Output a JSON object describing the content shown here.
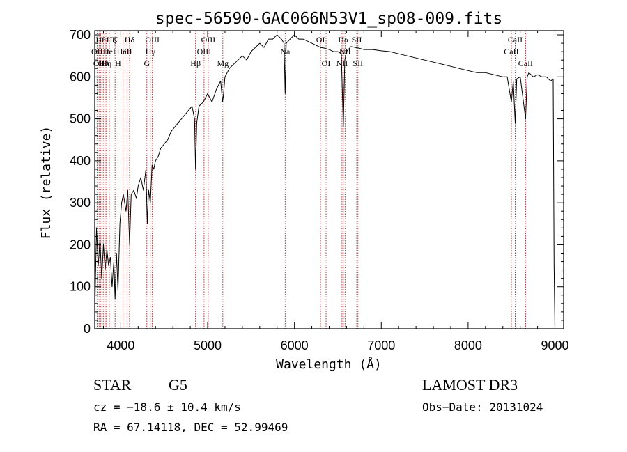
{
  "chart_data": {
    "type": "line",
    "title": "spec-56590-GAC066N53V1_sp08-009.fits",
    "xlabel": "Wavelength (Å)",
    "ylabel": "Flux (relative)",
    "xlim": [
      3700,
      9100
    ],
    "ylim": [
      0,
      710
    ],
    "x_ticks": [
      4000,
      5000,
      6000,
      7000,
      8000,
      9000
    ],
    "y_ticks": [
      0,
      100,
      200,
      300,
      400,
      500,
      600,
      700
    ],
    "series": [
      {
        "name": "spectrum",
        "x": [
          3700,
          3720,
          3740,
          3760,
          3780,
          3800,
          3820,
          3840,
          3860,
          3880,
          3900,
          3920,
          3934,
          3950,
          3968,
          3990,
          4010,
          4030,
          4060,
          4080,
          4101,
          4120,
          4150,
          4180,
          4200,
          4230,
          4260,
          4290,
          4305,
          4320,
          4340,
          4360,
          4380,
          4400,
          4430,
          4460,
          4500,
          4540,
          4580,
          4620,
          4660,
          4700,
          4740,
          4780,
          4820,
          4850,
          4861,
          4875,
          4900,
          4950,
          5000,
          5050,
          5100,
          5150,
          5172,
          5184,
          5200,
          5250,
          5300,
          5350,
          5400,
          5450,
          5500,
          5550,
          5600,
          5650,
          5700,
          5750,
          5800,
          5850,
          5880,
          5893,
          5905,
          5950,
          6000,
          6050,
          6100,
          6150,
          6200,
          6250,
          6300,
          6350,
          6400,
          6450,
          6500,
          6540,
          6563,
          6580,
          6600,
          6650,
          6700,
          6750,
          6800,
          6900,
          7000,
          7100,
          7200,
          7300,
          7400,
          7500,
          7600,
          7700,
          7800,
          7900,
          8000,
          8100,
          8200,
          8300,
          8400,
          8450,
          8498,
          8520,
          8542,
          8560,
          8600,
          8662,
          8680,
          8700,
          8750,
          8800,
          8850,
          8900,
          8950,
          8980,
          8990,
          9000
        ],
        "y": [
          30,
          240,
          150,
          210,
          120,
          200,
          140,
          190,
          150,
          170,
          100,
          160,
          70,
          180,
          90,
          250,
          300,
          320,
          280,
          330,
          200,
          320,
          330,
          310,
          340,
          360,
          330,
          380,
          250,
          330,
          300,
          390,
          380,
          400,
          410,
          430,
          440,
          450,
          470,
          480,
          490,
          500,
          510,
          520,
          530,
          500,
          380,
          490,
          530,
          540,
          560,
          540,
          570,
          590,
          540,
          560,
          600,
          620,
          630,
          640,
          650,
          640,
          660,
          670,
          680,
          670,
          690,
          690,
          700,
          690,
          680,
          560,
          680,
          690,
          700,
          690,
          690,
          685,
          680,
          675,
          670,
          668,
          665,
          660,
          660,
          655,
          480,
          640,
          660,
          672,
          670,
          668,
          665,
          665,
          662,
          660,
          655,
          650,
          645,
          640,
          635,
          630,
          625,
          620,
          615,
          610,
          610,
          605,
          600,
          600,
          540,
          590,
          490,
          595,
          600,
          500,
          600,
          610,
          600,
          605,
          600,
          600,
          590,
          595,
          150,
          0
        ]
      }
    ],
    "line_markers": [
      {
        "wave": 3727,
        "label": "OII",
        "row": 2
      },
      {
        "wave": 3750,
        "label": "OII",
        "row": 3
      },
      {
        "wave": 3770,
        "label": "Hθ",
        "row": 1
      },
      {
        "wave": 3798,
        "label": "Hθ",
        "row": 3
      },
      {
        "wave": 3820,
        "label": "He",
        "row": 2
      },
      {
        "wave": 3835,
        "label": "Hη",
        "row": 3
      },
      {
        "wave": 3868,
        "label": "HeI",
        "row": 2
      },
      {
        "wave": 3889,
        "label": "Hζ",
        "row": 1
      },
      {
        "wave": 3934,
        "label": "K",
        "row": 1
      },
      {
        "wave": 3968,
        "label": "H",
        "row": 3
      },
      {
        "wave": 4026,
        "label": "HeI",
        "row": 2
      },
      {
        "wave": 4072,
        "label": "SII",
        "row": 2
      },
      {
        "wave": 4101,
        "label": "Hδ",
        "row": 1
      },
      {
        "wave": 4300,
        "label": "G",
        "row": 3
      },
      {
        "wave": 4340,
        "label": "Hγ",
        "row": 2
      },
      {
        "wave": 4363,
        "label": "OIII",
        "row": 1
      },
      {
        "wave": 4861,
        "label": "Hβ",
        "row": 3
      },
      {
        "wave": 4959,
        "label": "OIII",
        "row": 2
      },
      {
        "wave": 5007,
        "label": "OIII",
        "row": 1
      },
      {
        "wave": 5175,
        "label": "Mg",
        "row": 3
      },
      {
        "wave": 5893,
        "label": "Na",
        "row": 2
      },
      {
        "wave": 6300,
        "label": "OI",
        "row": 1
      },
      {
        "wave": 6364,
        "label": "OI",
        "row": 3
      },
      {
        "wave": 6548,
        "label": "NII",
        "row": 3
      },
      {
        "wave": 6563,
        "label": "Hα",
        "row": 1
      },
      {
        "wave": 6583,
        "label": "NII",
        "row": 2
      },
      {
        "wave": 6717,
        "label": "SII",
        "row": 1
      },
      {
        "wave": 6731,
        "label": "SII",
        "row": 3
      },
      {
        "wave": 8498,
        "label": "CaII",
        "row": 2
      },
      {
        "wave": 8542,
        "label": "CaII",
        "row": 1
      },
      {
        "wave": 8662,
        "label": "CaII",
        "row": 3
      }
    ]
  },
  "info": {
    "object_class": "STAR",
    "subclass": "G5",
    "survey": "LAMOST DR3",
    "redshift": "cz = −18.6 ± 10.4 km/s",
    "obs_date": "Obs−Date: 20131024",
    "coords": "RA =  67.14118, DEC =  52.99469"
  }
}
